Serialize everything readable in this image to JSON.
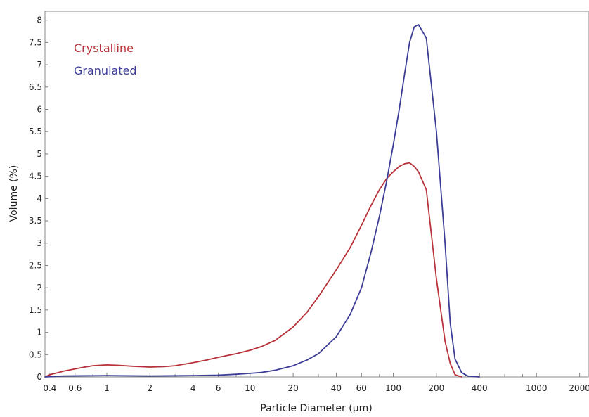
{
  "chart_data": {
    "type": "line",
    "xlabel": "Particle Diameter (µm)",
    "ylabel": "Volume (%)",
    "x_scale": "log",
    "xlim": [
      0.37,
      2300
    ],
    "ylim": [
      0,
      8.2
    ],
    "x_ticks": [
      {
        "value": 0.4,
        "label": "0.4"
      },
      {
        "value": 0.6,
        "label": "0.6"
      },
      {
        "value": 1,
        "label": "1"
      },
      {
        "value": 2,
        "label": "2"
      },
      {
        "value": 4,
        "label": "4"
      },
      {
        "value": 6,
        "label": "6"
      },
      {
        "value": 10,
        "label": "10"
      },
      {
        "value": 20,
        "label": "20"
      },
      {
        "value": 40,
        "label": "40"
      },
      {
        "value": 60,
        "label": "60"
      },
      {
        "value": 100,
        "label": "100"
      },
      {
        "value": 200,
        "label": "200"
      },
      {
        "value": 400,
        "label": "400"
      },
      {
        "value": 1000,
        "label": "1000"
      },
      {
        "value": 2000,
        "label": "2000"
      }
    ],
    "x_minor_ticks": [
      0.8,
      3,
      8,
      30,
      80,
      600,
      800
    ],
    "y_ticks": [
      {
        "value": 0,
        "label": "0"
      },
      {
        "value": 0.5,
        "label": "0.5"
      },
      {
        "value": 1,
        "label": "1"
      },
      {
        "value": 1.5,
        "label": "1.5"
      },
      {
        "value": 2,
        "label": "2"
      },
      {
        "value": 2.5,
        "label": "2.5"
      },
      {
        "value": 3,
        "label": "3"
      },
      {
        "value": 3.5,
        "label": "3.5"
      },
      {
        "value": 4,
        "label": "4"
      },
      {
        "value": 4.5,
        "label": "4.5"
      },
      {
        "value": 5,
        "label": "5"
      },
      {
        "value": 5.5,
        "label": "5.5"
      },
      {
        "value": 6,
        "label": "6"
      },
      {
        "value": 6.5,
        "label": "6.5"
      },
      {
        "value": 7,
        "label": "7"
      },
      {
        "value": 7.5,
        "label": "7.5"
      },
      {
        "value": 8,
        "label": "8"
      }
    ],
    "grid": false,
    "legend": "top-left",
    "series": [
      {
        "name": "Crystalline",
        "color": "#b8323a",
        "x": [
          0.37,
          0.4,
          0.45,
          0.5,
          0.6,
          0.7,
          0.8,
          1,
          1.2,
          1.5,
          2,
          2.5,
          3,
          4,
          5,
          6,
          8,
          10,
          12,
          15,
          20,
          25,
          30,
          40,
          50,
          60,
          70,
          80,
          90,
          100,
          110,
          120,
          130,
          140,
          150,
          170,
          200,
          230,
          250,
          270,
          300
        ],
        "y": [
          0,
          0.05,
          0.09,
          0.13,
          0.18,
          0.22,
          0.25,
          0.27,
          0.26,
          0.24,
          0.22,
          0.23,
          0.25,
          0.32,
          0.38,
          0.44,
          0.52,
          0.6,
          0.68,
          0.82,
          1.12,
          1.45,
          1.8,
          2.4,
          2.9,
          3.4,
          3.85,
          4.2,
          4.45,
          4.6,
          4.72,
          4.78,
          4.8,
          4.72,
          4.6,
          4.2,
          2.2,
          0.8,
          0.3,
          0.05,
          0
        ]
      },
      {
        "name": "Granulated",
        "color": "#3c3c96",
        "x": [
          0.37,
          0.5,
          1,
          2,
          4,
          6,
          8,
          10,
          12,
          15,
          20,
          25,
          30,
          40,
          50,
          60,
          70,
          80,
          90,
          100,
          110,
          120,
          130,
          140,
          150,
          170,
          200,
          230,
          250,
          270,
          300,
          330,
          400
        ],
        "y": [
          0,
          0.02,
          0.03,
          0.02,
          0.03,
          0.04,
          0.06,
          0.08,
          0.1,
          0.15,
          0.25,
          0.38,
          0.52,
          0.9,
          1.4,
          2.0,
          2.8,
          3.6,
          4.4,
          5.2,
          6.0,
          6.8,
          7.5,
          7.85,
          7.9,
          7.6,
          5.5,
          3.0,
          1.2,
          0.4,
          0.1,
          0.02,
          0
        ]
      }
    ]
  }
}
